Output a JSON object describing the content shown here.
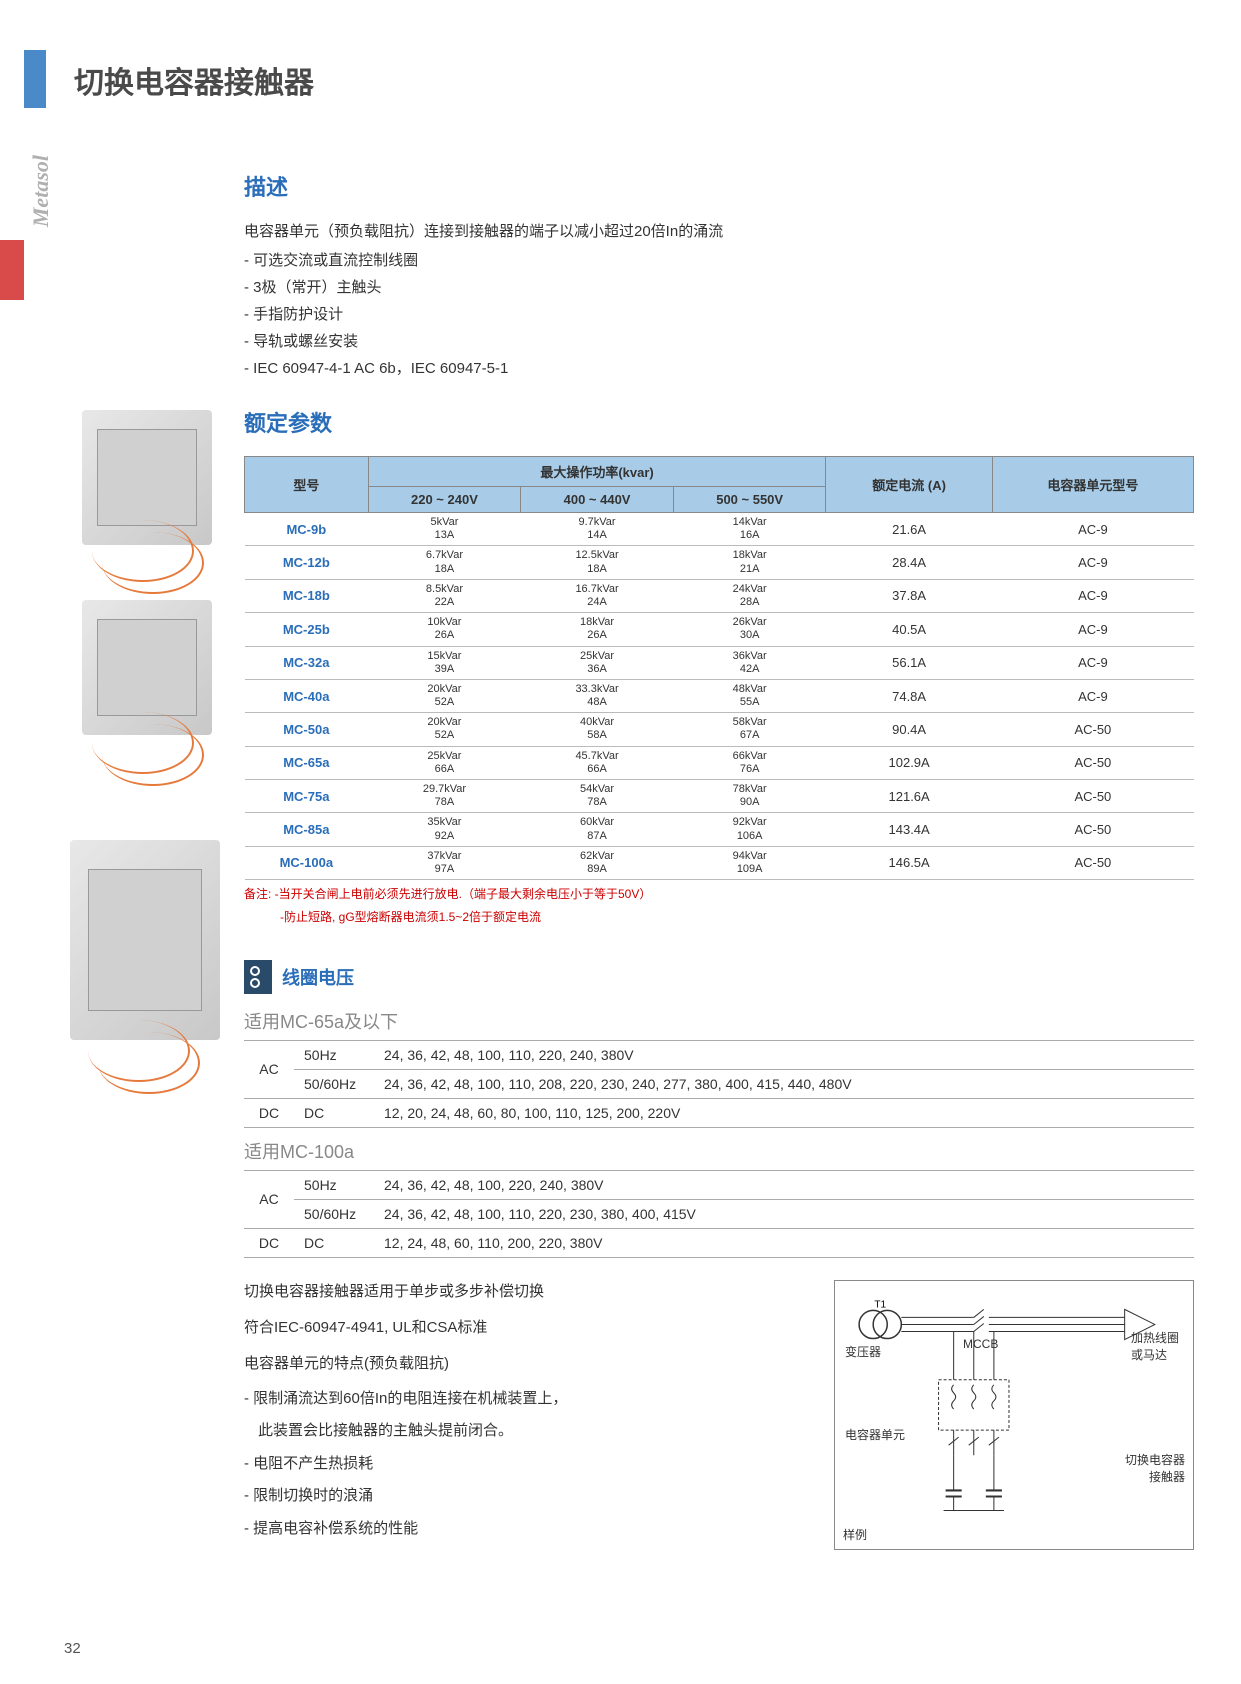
{
  "brand_side": "Metasol",
  "page_title": "切换电容器接触器",
  "page_num": "32",
  "desc": {
    "heading": "描述",
    "intro": "电容器单元（预负载阻抗）连接到接触器的端子以减小超过20倍In的涌流",
    "items": [
      "可选交流或直流控制线圈",
      "3极（常开）主触头",
      "手指防护设计",
      "导轨或螺丝安装",
      "IEC 60947-4-1 AC 6b，IEC 60947-5-1"
    ]
  },
  "ratings": {
    "heading": "额定参数",
    "th_model": "型号",
    "th_power": "最大操作功率(kvar)",
    "th_v1": "220 ~ 240V",
    "th_v2": "400 ~ 440V",
    "th_v3": "500 ~ 550V",
    "th_current": "额定电流\n(A)",
    "th_unit": "电容器单元型号",
    "rows": [
      {
        "m": "MC-9b",
        "v1a": "5kVar",
        "v1b": "13A",
        "v2a": "9.7kVar",
        "v2b": "14A",
        "v3a": "14kVar",
        "v3b": "16A",
        "cur": "21.6A",
        "unit": "AC-9"
      },
      {
        "m": "MC-12b",
        "v1a": "6.7kVar",
        "v1b": "18A",
        "v2a": "12.5kVar",
        "v2b": "18A",
        "v3a": "18kVar",
        "v3b": "21A",
        "cur": "28.4A",
        "unit": "AC-9"
      },
      {
        "m": "MC-18b",
        "v1a": "8.5kVar",
        "v1b": "22A",
        "v2a": "16.7kVar",
        "v2b": "24A",
        "v3a": "24kVar",
        "v3b": "28A",
        "cur": "37.8A",
        "unit": "AC-9"
      },
      {
        "m": "MC-25b",
        "v1a": "10kVar",
        "v1b": "26A",
        "v2a": "18kVar",
        "v2b": "26A",
        "v3a": "26kVar",
        "v3b": "30A",
        "cur": "40.5A",
        "unit": "AC-9"
      },
      {
        "m": "MC-32a",
        "v1a": "15kVar",
        "v1b": "39A",
        "v2a": "25kVar",
        "v2b": "36A",
        "v3a": "36kVar",
        "v3b": "42A",
        "cur": "56.1A",
        "unit": "AC-9"
      },
      {
        "m": "MC-40a",
        "v1a": "20kVar",
        "v1b": "52A",
        "v2a": "33.3kVar",
        "v2b": "48A",
        "v3a": "48kVar",
        "v3b": "55A",
        "cur": "74.8A",
        "unit": "AC-9"
      },
      {
        "m": "MC-50a",
        "v1a": "20kVar",
        "v1b": "52A",
        "v2a": "40kVar",
        "v2b": "58A",
        "v3a": "58kVar",
        "v3b": "67A",
        "cur": "90.4A",
        "unit": "AC-50"
      },
      {
        "m": "MC-65a",
        "v1a": "25kVar",
        "v1b": "66A",
        "v2a": "45.7kVar",
        "v2b": "66A",
        "v3a": "66kVar",
        "v3b": "76A",
        "cur": "102.9A",
        "unit": "AC-50"
      },
      {
        "m": "MC-75a",
        "v1a": "29.7kVar",
        "v1b": "78A",
        "v2a": "54kVar",
        "v2b": "78A",
        "v3a": "78kVar",
        "v3b": "90A",
        "cur": "121.6A",
        "unit": "AC-50"
      },
      {
        "m": "MC-85a",
        "v1a": "35kVar",
        "v1b": "92A",
        "v2a": "60kVar",
        "v2b": "87A",
        "v3a": "92kVar",
        "v3b": "106A",
        "cur": "143.4A",
        "unit": "AC-50"
      },
      {
        "m": "MC-100a",
        "v1a": "37kVar",
        "v1b": "97A",
        "v2a": "62kVar",
        "v2b": "89A",
        "v3a": "94kVar",
        "v3b": "109A",
        "cur": "146.5A",
        "unit": "AC-50"
      }
    ],
    "note1": "备注: -当开关合闸上电前必须先进行放电.（端子最大剩余电压小于等于50V）",
    "note2": "-防止短路, gG型熔断器电流须1.5~2倍于额定电流"
  },
  "coil": {
    "heading": "线圈电压",
    "sub1": "适用MC-65a及以下",
    "sub2": "适用MC-100a",
    "t1": {
      "ac": "AC",
      "dc": "DC",
      "r1f": "50Hz",
      "r1v": "24, 36, 42, 48, 100, 110, 220, 240, 380V",
      "r2f": "50/60Hz",
      "r2v": "24, 36, 42, 48, 100, 110, 208, 220, 230, 240, 277, 380, 400, 415, 440, 480V",
      "r3f": "DC",
      "r3v": "12, 20, 24, 48, 60, 80, 100, 110, 125, 200, 220V"
    },
    "t2": {
      "ac": "AC",
      "dc": "DC",
      "r1f": "50Hz",
      "r1v": "24, 36, 42, 48, 100, 220, 240, 380V",
      "r2f": "50/60Hz",
      "r2v": "24, 36, 42, 48, 100, 110, 220, 230, 380, 400, 415V",
      "r3f": "DC",
      "r3v": "12, 24, 48, 60, 110, 200, 220, 380V"
    }
  },
  "bottom": {
    "p1": "切换电容器接触器适用于单步或多步补偿切换",
    "p2": "符合IEC-60947-4941, UL和CSA标准",
    "p3": "电容器单元的特点(预负载阻抗)",
    "l1": "限制涌流达到60倍In的电阻连接在机械装置上，",
    "l1b": "此装置会比接触器的主触头提前闭合。",
    "l2": "电阻不产生热损耗",
    "l3": "限制切换时的浪涌",
    "l4": "提高电容补偿系统的性能"
  },
  "diagram": {
    "t1": "T1",
    "transformer": "变压器",
    "mccb": "MCCB",
    "cap_unit": "电容器单元",
    "heater": "加热线圈\n或马达",
    "contactor": "切换电容器\n接触器",
    "example": "样例"
  },
  "colors": {
    "accent_blue": "#2a6db8",
    "header_bg": "#a8cce8",
    "red_note": "#c00000",
    "wire_orange": "#e67a3c"
  }
}
